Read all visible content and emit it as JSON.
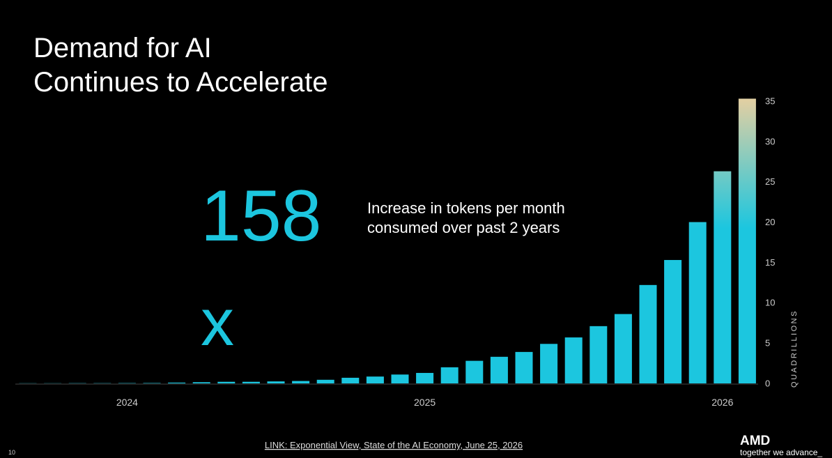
{
  "slide": {
    "title_lines": [
      "Demand for AI",
      "Continues to Accelerate"
    ],
    "big_number": "158",
    "big_suffix": "x",
    "caption_lines": [
      "Increase in tokens per month",
      "consumed over past 2 years"
    ],
    "source": "LINK: Exponential View, State of the AI Economy, June 25, 2026",
    "page_number": "10",
    "logo": "AMD",
    "tagline": "together we advance_"
  },
  "chart_data": {
    "type": "bar",
    "y_axis_label": "QUADRILLIONS",
    "categories": [
      null,
      null,
      null,
      null,
      "2024",
      null,
      null,
      null,
      null,
      null,
      null,
      null,
      null,
      null,
      null,
      null,
      "2025",
      null,
      null,
      null,
      null,
      null,
      null,
      null,
      null,
      null,
      null,
      null,
      "2026",
      null
    ],
    "values": [
      0.02,
      0.02,
      0.03,
      0.03,
      0.04,
      0.05,
      0.1,
      0.15,
      0.2,
      0.2,
      0.25,
      0.3,
      0.45,
      0.7,
      0.85,
      1.1,
      1.3,
      2.0,
      2.8,
      3.3,
      3.9,
      4.9,
      5.7,
      7.1,
      8.6,
      12.2,
      15.3,
      20.0,
      26.3,
      35.3
    ],
    "color": "#1cc6df",
    "top_color": "#e0cfa3",
    "ylim": [
      0,
      35
    ],
    "yticks": [
      0,
      5,
      10,
      15,
      20,
      25,
      30,
      35
    ]
  }
}
